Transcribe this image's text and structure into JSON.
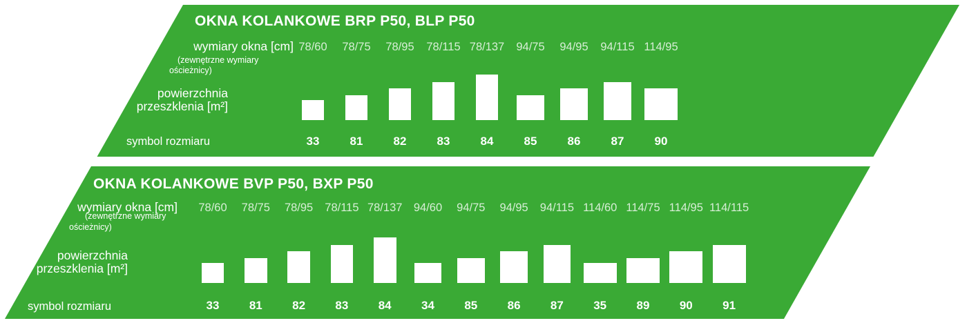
{
  "accent_color": "#3aaa35",
  "panels": [
    {
      "title": "OKNA KOLANKOWE BRP P50, BLP P50",
      "labels": {
        "dimensions": "wymiary okna [cm]",
        "note_line1": "(zewnętrzne wymiary",
        "note_line2": "ościeżnicy)",
        "glazing_line1": "powierzchnia",
        "glazing_line2": "przeszklenia [m²]",
        "symbol": "symbol rozmiaru"
      },
      "columns": [
        {
          "dimension": "78/60",
          "symbol": "33",
          "width_cm": 78,
          "height_cm": 60
        },
        {
          "dimension": "78/75",
          "symbol": "81",
          "width_cm": 78,
          "height_cm": 75
        },
        {
          "dimension": "78/95",
          "symbol": "82",
          "width_cm": 78,
          "height_cm": 95
        },
        {
          "dimension": "78/115",
          "symbol": "83",
          "width_cm": 78,
          "height_cm": 115
        },
        {
          "dimension": "78/137",
          "symbol": "84",
          "width_cm": 78,
          "height_cm": 137
        },
        {
          "dimension": "94/75",
          "symbol": "85",
          "width_cm": 94,
          "height_cm": 75
        },
        {
          "dimension": "94/95",
          "symbol": "86",
          "width_cm": 94,
          "height_cm": 95
        },
        {
          "dimension": "94/115",
          "symbol": "87",
          "width_cm": 94,
          "height_cm": 115
        },
        {
          "dimension": "114/95",
          "symbol": "90",
          "width_cm": 114,
          "height_cm": 95
        }
      ]
    },
    {
      "title": "OKNA KOLANKOWE BVP P50, BXP P50",
      "labels": {
        "dimensions": "wymiary okna [cm]",
        "note_line1": "(zewnętrzne wymiary",
        "note_line2": "ościeżnicy)",
        "glazing_line1": "powierzchnia",
        "glazing_line2": "przeszklenia [m²]",
        "symbol": "symbol rozmiaru"
      },
      "columns": [
        {
          "dimension": "78/60",
          "symbol": "33",
          "width_cm": 78,
          "height_cm": 60
        },
        {
          "dimension": "78/75",
          "symbol": "81",
          "width_cm": 78,
          "height_cm": 75
        },
        {
          "dimension": "78/95",
          "symbol": "82",
          "width_cm": 78,
          "height_cm": 95
        },
        {
          "dimension": "78/115",
          "symbol": "83",
          "width_cm": 78,
          "height_cm": 115
        },
        {
          "dimension": "78/137",
          "symbol": "84",
          "width_cm": 78,
          "height_cm": 137
        },
        {
          "dimension": "94/60",
          "symbol": "34",
          "width_cm": 94,
          "height_cm": 60
        },
        {
          "dimension": "94/75",
          "symbol": "85",
          "width_cm": 94,
          "height_cm": 75
        },
        {
          "dimension": "94/95",
          "symbol": "86",
          "width_cm": 94,
          "height_cm": 95
        },
        {
          "dimension": "94/115",
          "symbol": "87",
          "width_cm": 94,
          "height_cm": 115
        },
        {
          "dimension": "114/60",
          "symbol": "35",
          "width_cm": 114,
          "height_cm": 60
        },
        {
          "dimension": "114/75",
          "symbol": "89",
          "width_cm": 114,
          "height_cm": 75
        },
        {
          "dimension": "114/95",
          "symbol": "90",
          "width_cm": 114,
          "height_cm": 95
        },
        {
          "dimension": "114/115",
          "symbol": "91",
          "width_cm": 114,
          "height_cm": 115
        }
      ]
    }
  ],
  "chart_data": [
    {
      "type": "table",
      "title": "OKNA KOLANKOWE BRP P50, BLP P50",
      "categories": [
        "78/60",
        "78/75",
        "78/95",
        "78/115",
        "78/137",
        "94/75",
        "94/95",
        "94/115",
        "114/95"
      ],
      "rows": [
        {
          "label": "wymiary okna [cm] (zewnętrzne wymiary ościeżnicy)",
          "values": [
            "78/60",
            "78/75",
            "78/95",
            "78/115",
            "78/137",
            "94/75",
            "94/95",
            "94/115",
            "114/95"
          ]
        },
        {
          "label": "powierzchnia przeszklenia [m²]",
          "encoding": "white rectangle per column, width/height proportional to window cm dimensions",
          "width_cm": [
            78,
            78,
            78,
            78,
            78,
            94,
            94,
            94,
            114
          ],
          "height_cm": [
            60,
            75,
            95,
            115,
            137,
            75,
            95,
            115,
            95
          ]
        },
        {
          "label": "symbol rozmiaru",
          "values": [
            "33",
            "81",
            "82",
            "83",
            "84",
            "85",
            "86",
            "87",
            "90"
          ]
        }
      ],
      "legend": "none",
      "grid": "off"
    },
    {
      "type": "table",
      "title": "OKNA KOLANKOWE BVP P50, BXP P50",
      "categories": [
        "78/60",
        "78/75",
        "78/95",
        "78/115",
        "78/137",
        "94/60",
        "94/75",
        "94/95",
        "94/115",
        "114/60",
        "114/75",
        "114/95",
        "114/115"
      ],
      "rows": [
        {
          "label": "wymiary okna [cm] (zewnętrzne wymiary ościeżnicy)",
          "values": [
            "78/60",
            "78/75",
            "78/95",
            "78/115",
            "78/137",
            "94/60",
            "94/75",
            "94/95",
            "94/115",
            "114/60",
            "114/75",
            "114/95",
            "114/115"
          ]
        },
        {
          "label": "powierzchnia przeszklenia [m²]",
          "encoding": "white rectangle per column, width/height proportional to window cm dimensions",
          "width_cm": [
            78,
            78,
            78,
            78,
            78,
            94,
            94,
            94,
            94,
            114,
            114,
            114,
            114
          ],
          "height_cm": [
            60,
            75,
            95,
            115,
            137,
            60,
            75,
            95,
            115,
            60,
            75,
            95,
            115
          ]
        },
        {
          "label": "symbol rozmiaru",
          "values": [
            "33",
            "81",
            "82",
            "83",
            "84",
            "34",
            "85",
            "86",
            "87",
            "35",
            "89",
            "90",
            "91"
          ]
        }
      ],
      "legend": "none",
      "grid": "off"
    }
  ]
}
